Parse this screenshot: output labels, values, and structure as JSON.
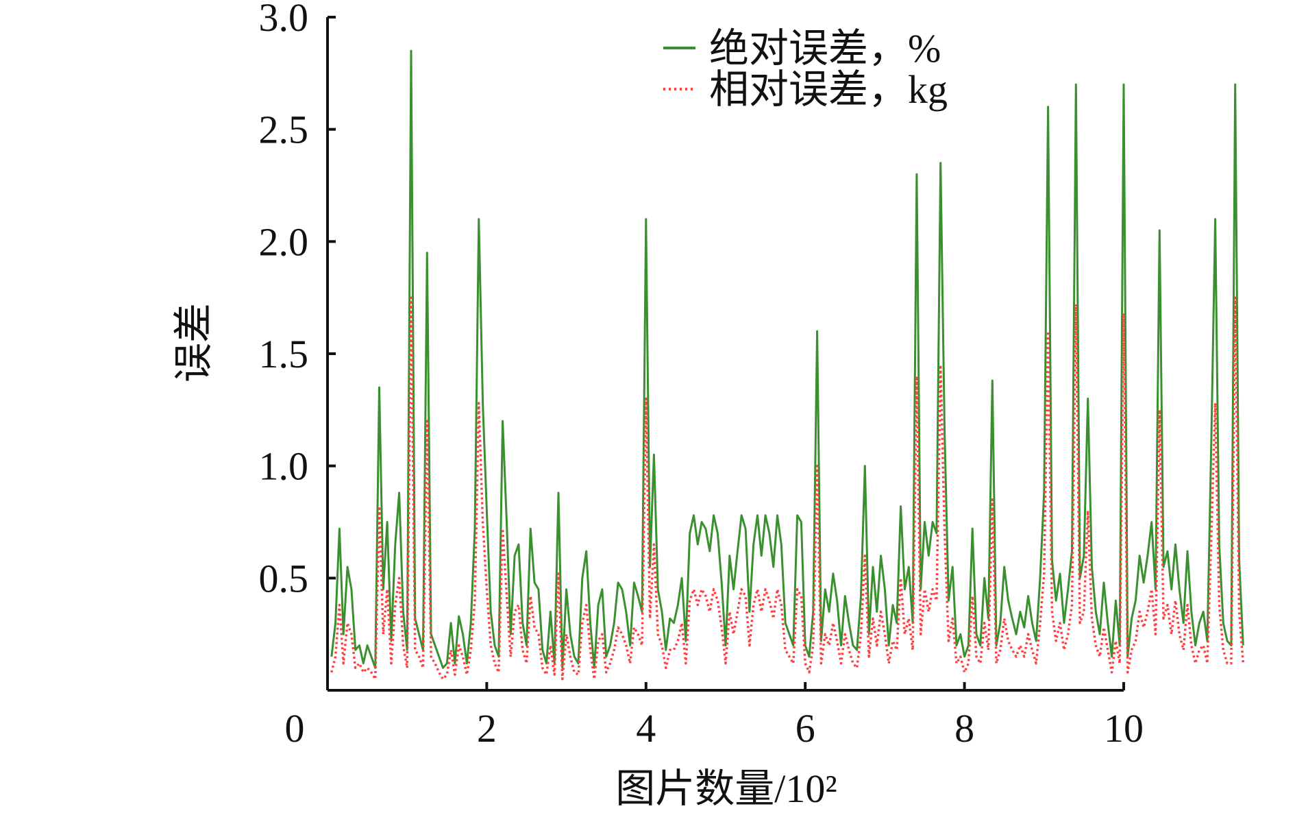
{
  "chart_data": {
    "type": "line",
    "xlabel": "图片数量/10²",
    "ylabel": "误差",
    "xlim": [
      0,
      10
    ],
    "ylim": [
      0,
      3.0
    ],
    "x_ticks": [
      "0",
      "2",
      "4",
      "6",
      "8",
      "10"
    ],
    "y_ticks": [
      "0.5",
      "1.0",
      "1.5",
      "2.0",
      "2.5",
      "3.0"
    ],
    "legend_position": "top-right",
    "grid": false,
    "series": [
      {
        "name": "绝对误差，%",
        "color": "#3a8f2f",
        "style": "solid",
        "sample_step": 0.05,
        "x_start": 0.05,
        "values": [
          0.15,
          0.3,
          0.72,
          0.25,
          0.55,
          0.45,
          0.18,
          0.2,
          0.12,
          0.2,
          0.15,
          0.1,
          1.35,
          0.45,
          0.75,
          0.22,
          0.65,
          0.88,
          0.35,
          0.18,
          2.85,
          0.32,
          0.25,
          0.18,
          1.95,
          0.25,
          0.2,
          0.15,
          0.1,
          0.12,
          0.3,
          0.12,
          0.33,
          0.25,
          0.12,
          0.3,
          0.72,
          2.1,
          1.28,
          0.8,
          0.35,
          0.2,
          0.15,
          1.2,
          0.75,
          0.25,
          0.6,
          0.65,
          0.3,
          0.2,
          0.72,
          0.48,
          0.45,
          0.18,
          0.12,
          0.35,
          0.12,
          0.88,
          0.1,
          0.45,
          0.25,
          0.15,
          0.12,
          0.5,
          0.62,
          0.3,
          0.1,
          0.38,
          0.45,
          0.15,
          0.2,
          0.3,
          0.48,
          0.45,
          0.35,
          0.2,
          0.48,
          0.42,
          0.35,
          2.1,
          0.55,
          1.05,
          0.45,
          0.35,
          0.18,
          0.32,
          0.3,
          0.38,
          0.5,
          0.22,
          0.7,
          0.78,
          0.65,
          0.75,
          0.72,
          0.62,
          0.78,
          0.7,
          0.48,
          0.2,
          0.6,
          0.45,
          0.62,
          0.78,
          0.72,
          0.35,
          0.65,
          0.78,
          0.6,
          0.78,
          0.7,
          0.55,
          0.78,
          0.65,
          0.3,
          0.25,
          0.2,
          0.78,
          0.75,
          0.2,
          0.15,
          0.35,
          1.6,
          0.22,
          0.45,
          0.35,
          0.52,
          0.4,
          0.2,
          0.42,
          0.3,
          0.2,
          0.18,
          0.42,
          1.0,
          0.25,
          0.55,
          0.35,
          0.6,
          0.45,
          0.2,
          0.38,
          0.3,
          0.82,
          0.45,
          0.55,
          0.3,
          2.3,
          0.45,
          0.75,
          0.6,
          0.75,
          0.7,
          2.35,
          1.15,
          0.4,
          0.55,
          0.2,
          0.25,
          0.15,
          0.2,
          0.72,
          0.25,
          0.2,
          0.5,
          0.32,
          1.38,
          0.2,
          0.3,
          0.55,
          0.4,
          0.32,
          0.25,
          0.35,
          0.28,
          0.42,
          0.3,
          0.22,
          0.5,
          0.88,
          2.6,
          0.58,
          0.4,
          0.52,
          0.3,
          0.45,
          0.62,
          2.7,
          0.5,
          0.6,
          1.3,
          0.55,
          0.35,
          0.25,
          0.48,
          0.3,
          0.15,
          0.4,
          0.2,
          2.7,
          0.15,
          0.32,
          0.4,
          0.6,
          0.48,
          0.6,
          0.75,
          0.45,
          2.05,
          0.55,
          0.62,
          0.45,
          0.65,
          0.45,
          0.3,
          0.62,
          0.35,
          0.2,
          0.3,
          0.35,
          0.22,
          1.1,
          2.1,
          0.65,
          0.3,
          0.22,
          0.2,
          2.7,
          0.58,
          0.2
        ]
      },
      {
        "name": "相对误差，kg",
        "color": "#ff4040",
        "style": "dotted",
        "sample_step": 0.05,
        "x_start": 0.05,
        "values": [
          0.08,
          0.15,
          0.38,
          0.12,
          0.3,
          0.25,
          0.1,
          0.12,
          0.08,
          0.1,
          0.08,
          0.05,
          0.82,
          0.25,
          0.45,
          0.12,
          0.38,
          0.5,
          0.2,
          0.1,
          1.75,
          0.18,
          0.15,
          0.1,
          1.2,
          0.15,
          0.12,
          0.08,
          0.05,
          0.07,
          0.18,
          0.07,
          0.2,
          0.15,
          0.07,
          0.18,
          0.4,
          1.28,
          0.75,
          0.45,
          0.2,
          0.12,
          0.08,
          0.72,
          0.42,
          0.15,
          0.35,
          0.38,
          0.18,
          0.12,
          0.42,
          0.28,
          0.25,
          0.1,
          0.07,
          0.2,
          0.07,
          0.52,
          0.05,
          0.25,
          0.15,
          0.08,
          0.07,
          0.3,
          0.38,
          0.18,
          0.05,
          0.22,
          0.25,
          0.08,
          0.12,
          0.18,
          0.28,
          0.25,
          0.2,
          0.12,
          0.28,
          0.25,
          0.2,
          1.3,
          0.32,
          0.65,
          0.25,
          0.2,
          0.1,
          0.18,
          0.18,
          0.22,
          0.3,
          0.12,
          0.4,
          0.45,
          0.38,
          0.45,
          0.42,
          0.35,
          0.45,
          0.4,
          0.28,
          0.12,
          0.35,
          0.25,
          0.35,
          0.45,
          0.42,
          0.2,
          0.38,
          0.45,
          0.35,
          0.45,
          0.4,
          0.32,
          0.45,
          0.38,
          0.18,
          0.15,
          0.12,
          0.45,
          0.42,
          0.12,
          0.08,
          0.2,
          1.0,
          0.12,
          0.25,
          0.2,
          0.3,
          0.22,
          0.12,
          0.25,
          0.18,
          0.12,
          0.1,
          0.25,
          0.6,
          0.15,
          0.32,
          0.2,
          0.35,
          0.25,
          0.12,
          0.22,
          0.18,
          0.5,
          0.25,
          0.32,
          0.18,
          1.4,
          0.25,
          0.45,
          0.35,
          0.45,
          0.4,
          1.45,
          0.7,
          0.22,
          0.32,
          0.12,
          0.15,
          0.08,
          0.12,
          0.42,
          0.15,
          0.12,
          0.3,
          0.18,
          0.85,
          0.12,
          0.18,
          0.32,
          0.22,
          0.18,
          0.15,
          0.2,
          0.15,
          0.25,
          0.18,
          0.12,
          0.3,
          0.52,
          1.6,
          0.35,
          0.22,
          0.3,
          0.18,
          0.25,
          0.38,
          1.72,
          0.3,
          0.35,
          0.8,
          0.32,
          0.2,
          0.15,
          0.28,
          0.18,
          0.08,
          0.22,
          0.12,
          1.68,
          0.08,
          0.18,
          0.22,
          0.35,
          0.28,
          0.35,
          0.45,
          0.25,
          1.25,
          0.32,
          0.38,
          0.25,
          0.4,
          0.25,
          0.18,
          0.38,
          0.2,
          0.12,
          0.18,
          0.2,
          0.12,
          0.68,
          1.28,
          0.38,
          0.18,
          0.12,
          0.12,
          1.75,
          0.35,
          0.12
        ]
      }
    ]
  }
}
